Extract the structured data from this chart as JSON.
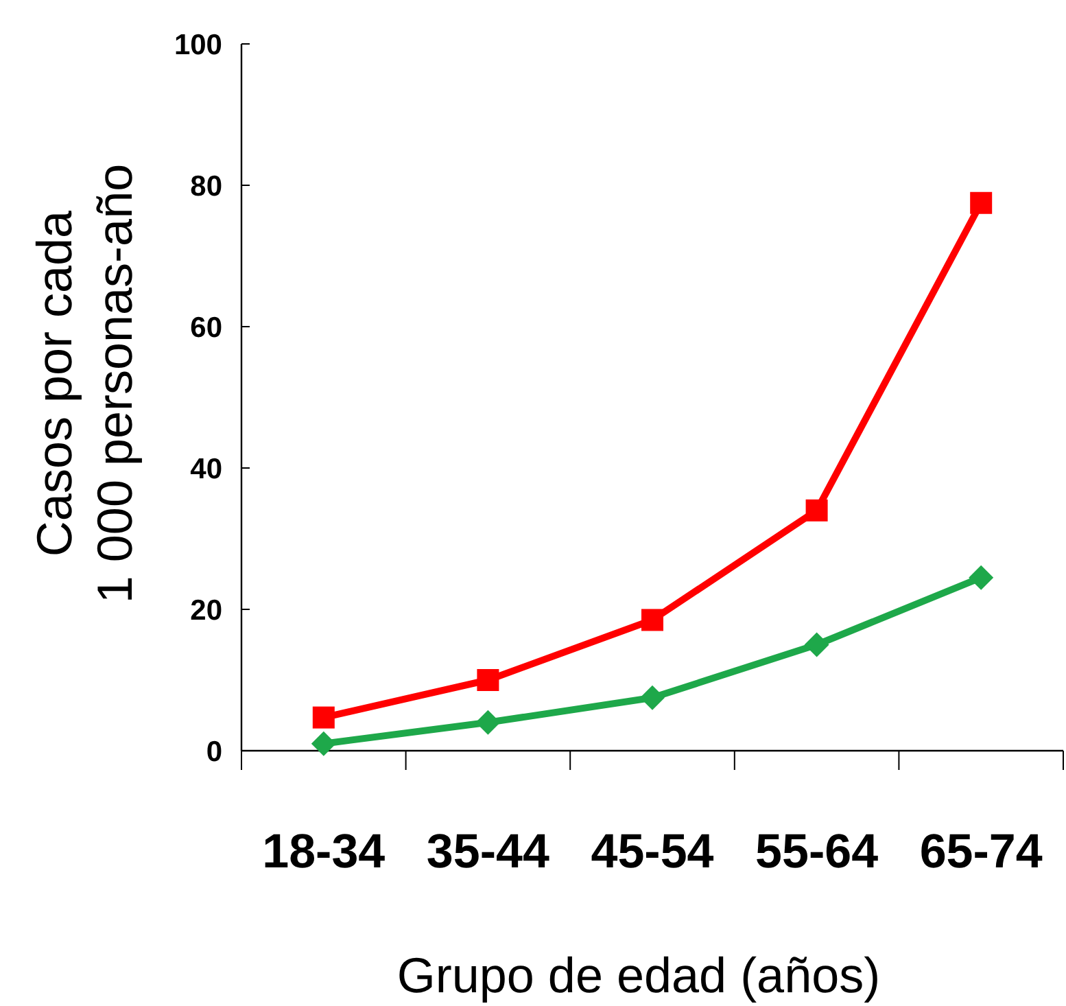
{
  "chart_data": {
    "type": "line",
    "xlabel": "Grupo de edad (años)",
    "ylabel": "Casos por cada\n1 000 personas-año",
    "categories": [
      "18-34",
      "35-44",
      "45-54",
      "55-64",
      "65-74"
    ],
    "series": [
      {
        "color": "#ff0000",
        "marker": "square",
        "values": [
          4.7,
          10,
          18.5,
          34,
          77.5
        ]
      },
      {
        "color": "#1ea84a",
        "marker": "diamond",
        "values": [
          1,
          4,
          7.5,
          15,
          24.5
        ]
      }
    ],
    "ylim": [
      0,
      100
    ],
    "yticks": [
      0,
      20,
      40,
      60,
      80,
      100
    ],
    "grid": false,
    "line_style": "solid"
  }
}
